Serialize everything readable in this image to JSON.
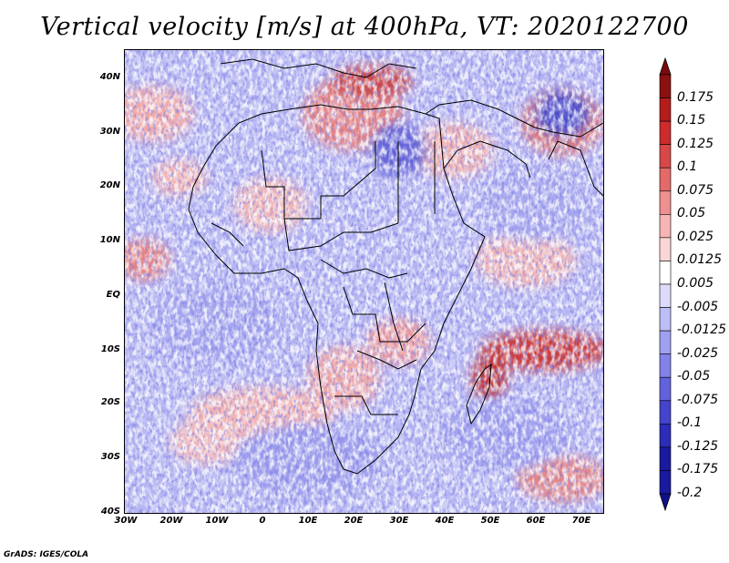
{
  "title": "Vertical velocity [m/s] at 400hPa, VT: 2020122700",
  "footer": "GrADS: IGES/COLA",
  "map": {
    "lon_range": [
      -30,
      75
    ],
    "lat_range": [
      -40,
      45
    ],
    "lat_ticks": [
      "40N",
      "30N",
      "20N",
      "10N",
      "EQ",
      "10S",
      "20S",
      "30S",
      "40S"
    ],
    "lon_ticks": [
      "30W",
      "20W",
      "10W",
      "0",
      "10E",
      "20E",
      "30E",
      "40E",
      "50E",
      "60E",
      "70E"
    ],
    "region": "Africa and surrounding oceans",
    "field": "vertical velocity, 400hPa"
  },
  "colorbar": {
    "levels": [
      "0.175",
      "0.15",
      "0.125",
      "0.1",
      "0.075",
      "0.05",
      "0.025",
      "0.0125",
      "0.005",
      "-0.005",
      "-0.0125",
      "-0.025",
      "-0.05",
      "-0.075",
      "-0.1",
      "-0.125",
      "-0.175",
      "-0.2"
    ],
    "colors": [
      "#8b1010",
      "#b51c1c",
      "#cc2c2c",
      "#d84848",
      "#e46a6a",
      "#ee9090",
      "#f6b4b4",
      "#fad6d6",
      "#ffffff",
      "#dcdcfa",
      "#bebef6",
      "#a0a0f0",
      "#8282e8",
      "#6262dc",
      "#4444cc",
      "#2c2cb8",
      "#1a1a9e",
      "#1a1a9e"
    ],
    "top_arrow_color": "#7a0a0a",
    "bottom_arrow_color": "#10108a"
  }
}
